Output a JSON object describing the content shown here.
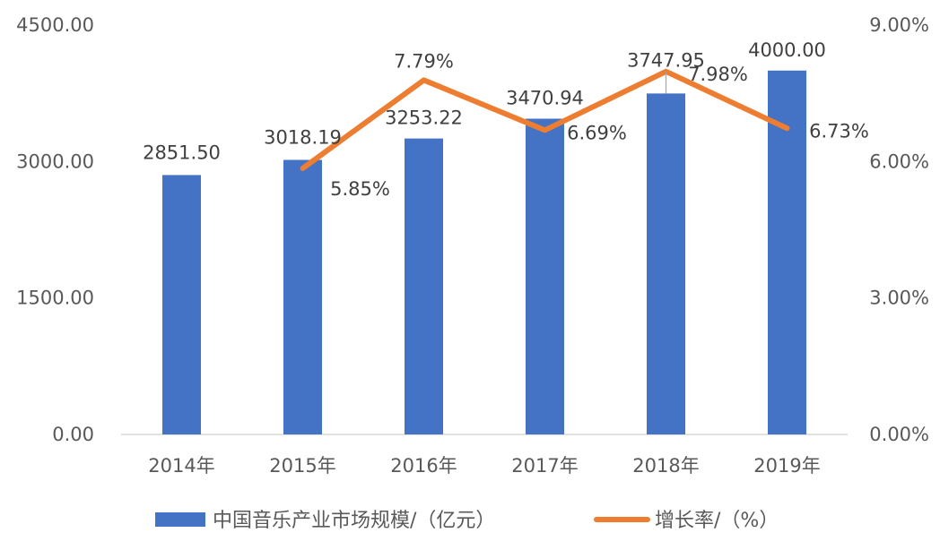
{
  "chart_data": {
    "type": "bar",
    "categories": [
      "2014年",
      "2015年",
      "2016年",
      "2017年",
      "2018年",
      "2019年"
    ],
    "series": [
      {
        "name": "中国音乐产业市场规模/（亿元）",
        "type": "bar",
        "axis": "left",
        "color": "#4472C4",
        "values": [
          2851.5,
          3018.19,
          3253.22,
          3470.94,
          3747.95,
          4000.0
        ],
        "labels": [
          "2851.50",
          "3018.19",
          "3253.22",
          "3470.94",
          "3747.95",
          "4000.00"
        ]
      },
      {
        "name": "增长率/（%）",
        "type": "line",
        "axis": "right",
        "color": "#ED7D31",
        "values": [
          null,
          5.85,
          7.79,
          6.69,
          7.98,
          6.73
        ],
        "labels": [
          "",
          "5.85%",
          "7.79%",
          "6.69%",
          "7.98%",
          "6.73%"
        ]
      }
    ],
    "y_left": {
      "range": [
        0,
        4500
      ],
      "ticks": [
        0,
        1500,
        3000,
        4500
      ],
      "tick_labels": [
        "0.00",
        "1500.00",
        "3000.00",
        "4500.00"
      ]
    },
    "y_right": {
      "range": [
        0,
        9
      ],
      "ticks": [
        0,
        3,
        6,
        9
      ],
      "tick_labels": [
        "0.00%",
        "3.00%",
        "6.00%",
        "9.00%"
      ]
    },
    "grid": false,
    "legend": "bottom"
  }
}
